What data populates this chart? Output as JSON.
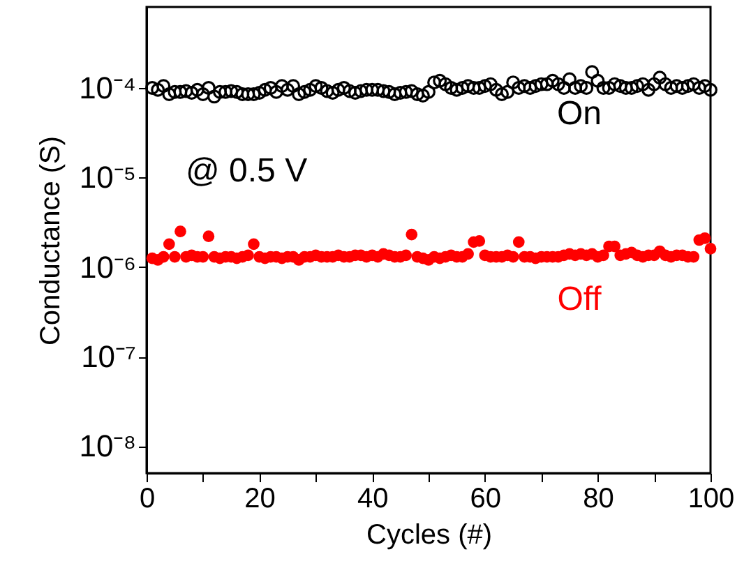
{
  "chart_data": {
    "type": "scatter",
    "xlabel": "Cycles (#)",
    "ylabel": "Conductance (S)",
    "log": "y",
    "xlim": [
      0,
      100
    ],
    "ylim": [
      5e-09,
      0.0008
    ],
    "xticks": [
      0,
      {
        "value": 10,
        "label": null
      },
      20,
      {
        "value": 30,
        "label": null
      },
      40,
      {
        "value": 50,
        "label": null
      },
      60,
      {
        "value": 70,
        "label": null
      },
      80,
      {
        "value": 90,
        "label": null
      },
      100
    ],
    "yticks": [
      {
        "value": 1e-08,
        "label": "10⁻⁸"
      },
      {
        "value": 1e-07,
        "label": "10⁻⁷"
      },
      {
        "value": 1e-06,
        "label": "10⁻⁶"
      },
      {
        "value": 1e-05,
        "label": "10⁻⁵"
      },
      {
        "value": 0.0001,
        "label": "10⁻⁴"
      }
    ],
    "grid": false,
    "legend": false,
    "x": [
      1,
      2,
      3,
      4,
      5,
      6,
      7,
      8,
      9,
      10,
      11,
      12,
      13,
      14,
      15,
      16,
      17,
      18,
      19,
      20,
      21,
      22,
      23,
      24,
      25,
      26,
      27,
      28,
      29,
      30,
      31,
      32,
      33,
      34,
      35,
      36,
      37,
      38,
      39,
      40,
      41,
      42,
      43,
      44,
      45,
      46,
      47,
      48,
      49,
      50,
      51,
      52,
      53,
      54,
      55,
      56,
      57,
      58,
      59,
      60,
      61,
      62,
      63,
      64,
      65,
      66,
      67,
      68,
      69,
      70,
      71,
      72,
      73,
      74,
      75,
      76,
      77,
      78,
      79,
      80,
      81,
      82,
      83,
      84,
      85,
      86,
      87,
      88,
      89,
      90,
      91,
      92,
      93,
      94,
      95,
      96,
      97,
      98,
      99,
      100
    ],
    "series": [
      {
        "name": "On",
        "color": "#000000",
        "marker": "circle",
        "values": [
          0.0001,
          9.5e-05,
          0.000105,
          8.5e-05,
          9e-05,
          9e-05,
          9.2e-05,
          8.8e-05,
          9.5e-05,
          8.5e-05,
          0.0001,
          8e-05,
          9e-05,
          9e-05,
          9.2e-05,
          9e-05,
          8.5e-05,
          8.5e-05,
          8.5e-05,
          8.8e-05,
          9.5e-05,
          0.0001,
          9e-05,
          0.000105,
          9.5e-05,
          0.000105,
          8.5e-05,
          9e-05,
          9.5e-05,
          0.000105,
          0.0001,
          9.2e-05,
          8.8e-05,
          9.5e-05,
          0.0001,
          9.2e-05,
          8.8e-05,
          9.2e-05,
          9.5e-05,
          9.5e-05,
          9.5e-05,
          9.2e-05,
          9e-05,
          8.5e-05,
          8.8e-05,
          9e-05,
          9.2e-05,
          8.5e-05,
          8.2e-05,
          9e-05,
          0.000115,
          0.00012,
          0.00011,
          0.0001,
          9.5e-05,
          0.0001,
          0.000105,
          0.0001,
          0.0001,
          0.000105,
          0.00011,
          9.5e-05,
          8.5e-05,
          9e-05,
          0.000115,
          0.0001,
          0.000105,
          0.0001,
          0.000105,
          0.00011,
          0.00011,
          0.00012,
          0.00011,
          0.0001,
          0.000125,
          0.0001,
          0.000105,
          0.0001,
          0.00015,
          0.00012,
          0.0001,
          0.0001,
          0.00011,
          0.000105,
          0.0001,
          0.0001,
          0.000105,
          0.00011,
          9.5e-05,
          0.00011,
          0.00013,
          0.00011,
          0.0001,
          0.000105,
          0.0001,
          0.000105,
          0.00011,
          0.0001,
          0.000105,
          9.5e-05
        ]
      },
      {
        "name": "Off",
        "color": "#ff0000",
        "marker": "circle",
        "values": [
          1.25e-06,
          1.2e-06,
          1.3e-06,
          1.8e-06,
          1.3e-06,
          2.5e-06,
          1.3e-06,
          1.35e-06,
          1.3e-06,
          1.3e-06,
          2.2e-06,
          1.3e-06,
          1.25e-06,
          1.3e-06,
          1.3e-06,
          1.25e-06,
          1.3e-06,
          1.35e-06,
          1.8e-06,
          1.3e-06,
          1.25e-06,
          1.3e-06,
          1.3e-06,
          1.25e-06,
          1.3e-06,
          1.3e-06,
          1.2e-06,
          1.3e-06,
          1.3e-06,
          1.35e-06,
          1.3e-06,
          1.3e-06,
          1.3e-06,
          1.35e-06,
          1.3e-06,
          1.3e-06,
          1.35e-06,
          1.35e-06,
          1.3e-06,
          1.35e-06,
          1.3e-06,
          1.4e-06,
          1.35e-06,
          1.3e-06,
          1.3e-06,
          1.35e-06,
          2.3e-06,
          1.3e-06,
          1.25e-06,
          1.2e-06,
          1.3e-06,
          1.25e-06,
          1.3e-06,
          1.35e-06,
          1.3e-06,
          1.3e-06,
          1.4e-06,
          1.9e-06,
          1.95e-06,
          1.35e-06,
          1.3e-06,
          1.3e-06,
          1.3e-06,
          1.35e-06,
          1.3e-06,
          1.9e-06,
          1.3e-06,
          1.3e-06,
          1.25e-06,
          1.3e-06,
          1.3e-06,
          1.3e-06,
          1.3e-06,
          1.35e-06,
          1.4e-06,
          1.35e-06,
          1.4e-06,
          1.35e-06,
          1.4e-06,
          1.3e-06,
          1.35e-06,
          1.7e-06,
          1.7e-06,
          1.35e-06,
          1.4e-06,
          1.45e-06,
          1.35e-06,
          1.3e-06,
          1.35e-06,
          1.35e-06,
          1.5e-06,
          1.35e-06,
          1.3e-06,
          1.35e-06,
          1.35e-06,
          1.3e-06,
          1.3e-06,
          2e-06,
          2.1e-06,
          1.6e-06
        ]
      }
    ],
    "annotations": [
      "@ 0.5 V"
    ]
  }
}
